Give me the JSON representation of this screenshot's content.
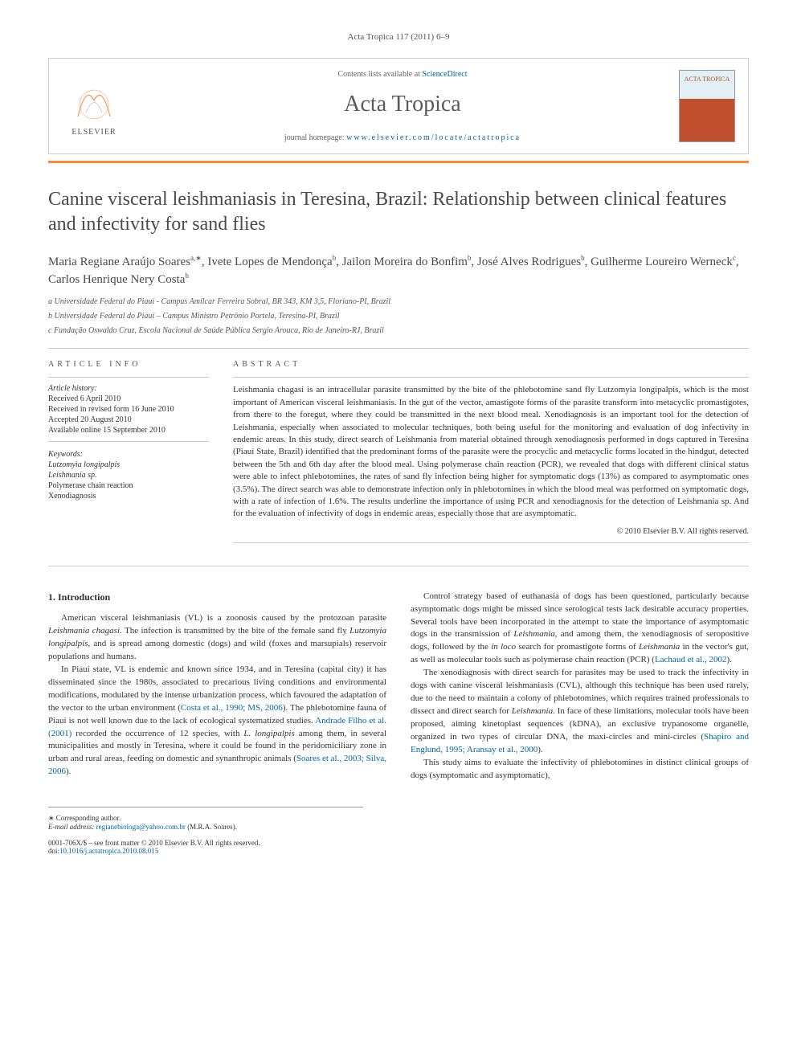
{
  "running_header": "Acta Tropica 117 (2011) 6–9",
  "masthead": {
    "contents_prefix": "Contents lists available at ",
    "contents_link": "ScienceDirect",
    "journal_name": "Acta Tropica",
    "homepage_prefix": "journal homepage: ",
    "homepage_link": "www.elsevier.com/locate/actatropica",
    "elsevier_label": "ELSEVIER",
    "cover_title": "ACTA TROPICA"
  },
  "article": {
    "title": "Canine visceral leishmaniasis in Teresina, Brazil: Relationship between clinical features and infectivity for sand flies",
    "authors_html": "Maria Regiane Araújo Soares<sup>a,∗</sup>, Ivete Lopes de Mendonça<sup>b</sup>, Jailon Moreira do Bonfim<sup>b</sup>, José Alves Rodrigues<sup>b</sup>, Guilherme Loureiro Werneck<sup>c</sup>, Carlos Henrique Nery Costa<sup>b</sup>",
    "affiliations": [
      "a Universidade Federal do Piauí - Campus Amílcar Ferreira Sobral, BR 343, KM 3,5, Floriano-PI, Brazil",
      "b Universidade Federal do Piauí – Campus Ministro Petrônio Portela, Teresina-PI, Brazil",
      "c Fundação Oswaldo Cruz, Escola Nacional de Saúde Pública Sergio Arouca, Rio de Janeiro-RJ, Brazil"
    ]
  },
  "info": {
    "heading": "ARTICLE INFO",
    "history_label": "Article history:",
    "history": [
      "Received 6 April 2010",
      "Received in revised form 16 June 2010",
      "Accepted 20 August 2010",
      "Available online 15 September 2010"
    ],
    "keywords_label": "Keywords:",
    "keywords": [
      {
        "text": "Lutzomyia longipalpis",
        "italic": true
      },
      {
        "text": "Leishmania sp.",
        "italic": true
      },
      {
        "text": "Polymerase chain reaction",
        "italic": false
      },
      {
        "text": "Xenodiagnosis",
        "italic": false
      }
    ]
  },
  "abstract": {
    "heading": "ABSTRACT",
    "text": "Leishmania chagasi is an intracellular parasite transmitted by the bite of the phlebotomine sand fly Lutzomyia longipalpis, which is the most important of American visceral leishmaniasis. In the gut of the vector, amastigote forms of the parasite transform into metacyclic promastigotes, from there to the foregut, where they could be transmitted in the next blood meal. Xenodiagnosis is an important tool for the detection of Leishmania, especially when associated to molecular techniques, both being useful for the monitoring and evaluation of dog infectivity in endemic areas. In this study, direct search of Leishmania from material obtained through xenodiagnosis performed in dogs captured in Teresina (Piauí State, Brazil) identified that the predominant forms of the parasite were the procyclic and metacyclic forms located in the hindgut, detected between the 5th and 6th day after the blood meal. Using polymerase chain reaction (PCR), we revealed that dogs with different clinical status were able to infect phlebotomines, the rates of sand fly infection being higher for symptomatic dogs (13%) as compared to asymptomatic ones (3.5%). The direct search was able to demonstrate infection only in phlebotomines in which the blood meal was performed on symptomatic dogs, with a rate of infection of 1.6%. The results underline the importance of using PCR and xenodiagnosis for the detection of Leishmania sp. And for the evaluation of infectivity of dogs in endemic areas, especially those that are asymptomatic.",
    "copyright": "© 2010 Elsevier B.V. All rights reserved."
  },
  "body": {
    "section_heading": "1. Introduction",
    "paragraphs": [
      "American visceral leishmaniasis (VL) is a zoonosis caused by the protozoan parasite <em>Leishmania chagasi</em>. The infection is transmitted by the bite of the female sand fly <em>Lutzomyia longipalpis</em>, and is spread among domestic (dogs) and wild (foxes and marsupials) reservoir populations and humans.",
      "In Piauí state, VL is endemic and known since 1934, and in Teresina (capital city) it has disseminated since the 1980s, associated to precarious living conditions and environmental modifications, modulated by the intense urbanization process, which favoured the adaptation of the vector to the urban environment (<a href='#'>Costa et al., 1990; MS, 2006</a>). The phlebotomine fauna of Piauí is not well known due to the lack of ecological systematized studies. <a href='#'>Andrade Filho et al. (2001)</a> recorded the occurrence of 12 species, with <em>L. longipalpis</em> among them, in several municipalities and mostly in Teresina, where it could be found in the peridomiciliary zone in urban and rural areas, feeding on domestic and synanthropic animals (<a href='#'>Soares et al., 2003; Silva, 2006</a>).",
      "Control strategy based of euthanasia of dogs has been questioned, particularly because asymptomatic dogs might be missed since serological tests lack desirable accuracy properties. Several tools have been incorporated in the attempt to state the importance of asymptomatic dogs in the transmission of <em>Leishmania</em>, and among them, the xenodiagnosis of seropositive dogs, followed by the <em>in loco</em> search for promastigote forms of <em>Leishmania</em> in the vector's gut, as well as molecular tools such as polymerase chain reaction (PCR) (<a href='#'>Lachaud et al., 2002</a>).",
      "The xenodiagnosis with direct search for parasites may be used to track the infectivity in dogs with canine visceral leishmaniasis (CVL), although this technique has been used rarely, due to the need to maintain a colony of phlebotomines, which requires trained professionals to dissect and direct search for <em>Leishmania</em>. In face of these limitations, molecular tools have been proposed, aiming kinetoplast sequences (kDNA), an exclusive trypanosome organelle, organized in two types of circular DNA, the maxi-circles and mini-circles (<a href='#'>Shapiro and Englund, 1995; Aransay et al., 2000</a>).",
      "This study aims to evaluate the infectivity of phlebotomines in distinct clinical groups of dogs (symptomatic and asymptomatic),"
    ]
  },
  "footer": {
    "corresponding": "∗ Corresponding author.",
    "email_label": "E-mail address: ",
    "email": "regianebiologa@yahoo.com.br",
    "email_suffix": " (M.R.A. Soares).",
    "front_matter": "0001-706X/$ – see front matter © 2010 Elsevier B.V. All rights reserved.",
    "doi_label": "doi:",
    "doi": "10.1016/j.actatropica.2010.08.015"
  },
  "colors": {
    "orange_bar": "#ff8833",
    "link": "#0066aa",
    "text": "#333333",
    "border": "#cccccc"
  }
}
